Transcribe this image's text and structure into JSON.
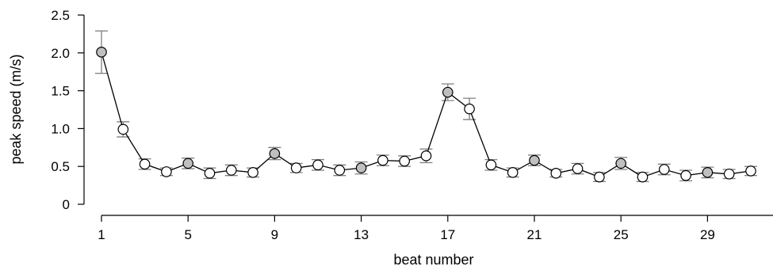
{
  "chart_data": {
    "type": "line",
    "title": "",
    "xlabel": "beat number",
    "ylabel": "peak speed (m/s)",
    "xlim": [
      1,
      32
    ],
    "ylim": [
      0,
      2.5
    ],
    "xticks": [
      1,
      5,
      9,
      13,
      17,
      21,
      25,
      29
    ],
    "yticks": [
      0,
      0.5,
      1.0,
      1.5,
      2.0,
      2.5
    ],
    "ytick_labels": [
      "0",
      "0.5",
      "1.0",
      "1.5",
      "2.0",
      "2.5"
    ],
    "grid": false,
    "legend": "none",
    "colors": {
      "filled_marker": "#bfbfbf",
      "open_marker": "#ffffff",
      "error_bar": "#7f7f7f",
      "line": "#000000"
    },
    "series": [
      {
        "x": [
          1,
          2,
          3,
          4,
          5,
          6,
          7,
          8,
          9,
          10,
          11,
          12,
          13,
          14,
          15,
          16,
          17,
          18,
          19,
          20,
          21,
          22,
          23,
          24,
          25,
          26,
          27,
          28,
          29,
          30,
          31
        ],
        "values": [
          2.01,
          0.99,
          0.53,
          0.43,
          0.54,
          0.41,
          0.45,
          0.42,
          0.67,
          0.48,
          0.52,
          0.45,
          0.48,
          0.58,
          0.57,
          0.64,
          1.48,
          1.26,
          0.52,
          0.42,
          0.58,
          0.41,
          0.47,
          0.36,
          0.54,
          0.36,
          0.46,
          0.38,
          0.42,
          0.4,
          0.44
        ],
        "error": [
          0.28,
          0.1,
          0.07,
          0.05,
          0.07,
          0.07,
          0.07,
          0.06,
          0.08,
          0.06,
          0.07,
          0.07,
          0.08,
          0.07,
          0.07,
          0.09,
          0.11,
          0.14,
          0.07,
          0.06,
          0.07,
          0.05,
          0.07,
          0.06,
          0.08,
          0.06,
          0.07,
          0.07,
          0.07,
          0.06,
          0.06
        ],
        "highlighted": [
          1,
          5,
          9,
          13,
          17,
          21,
          25,
          29
        ]
      }
    ]
  }
}
